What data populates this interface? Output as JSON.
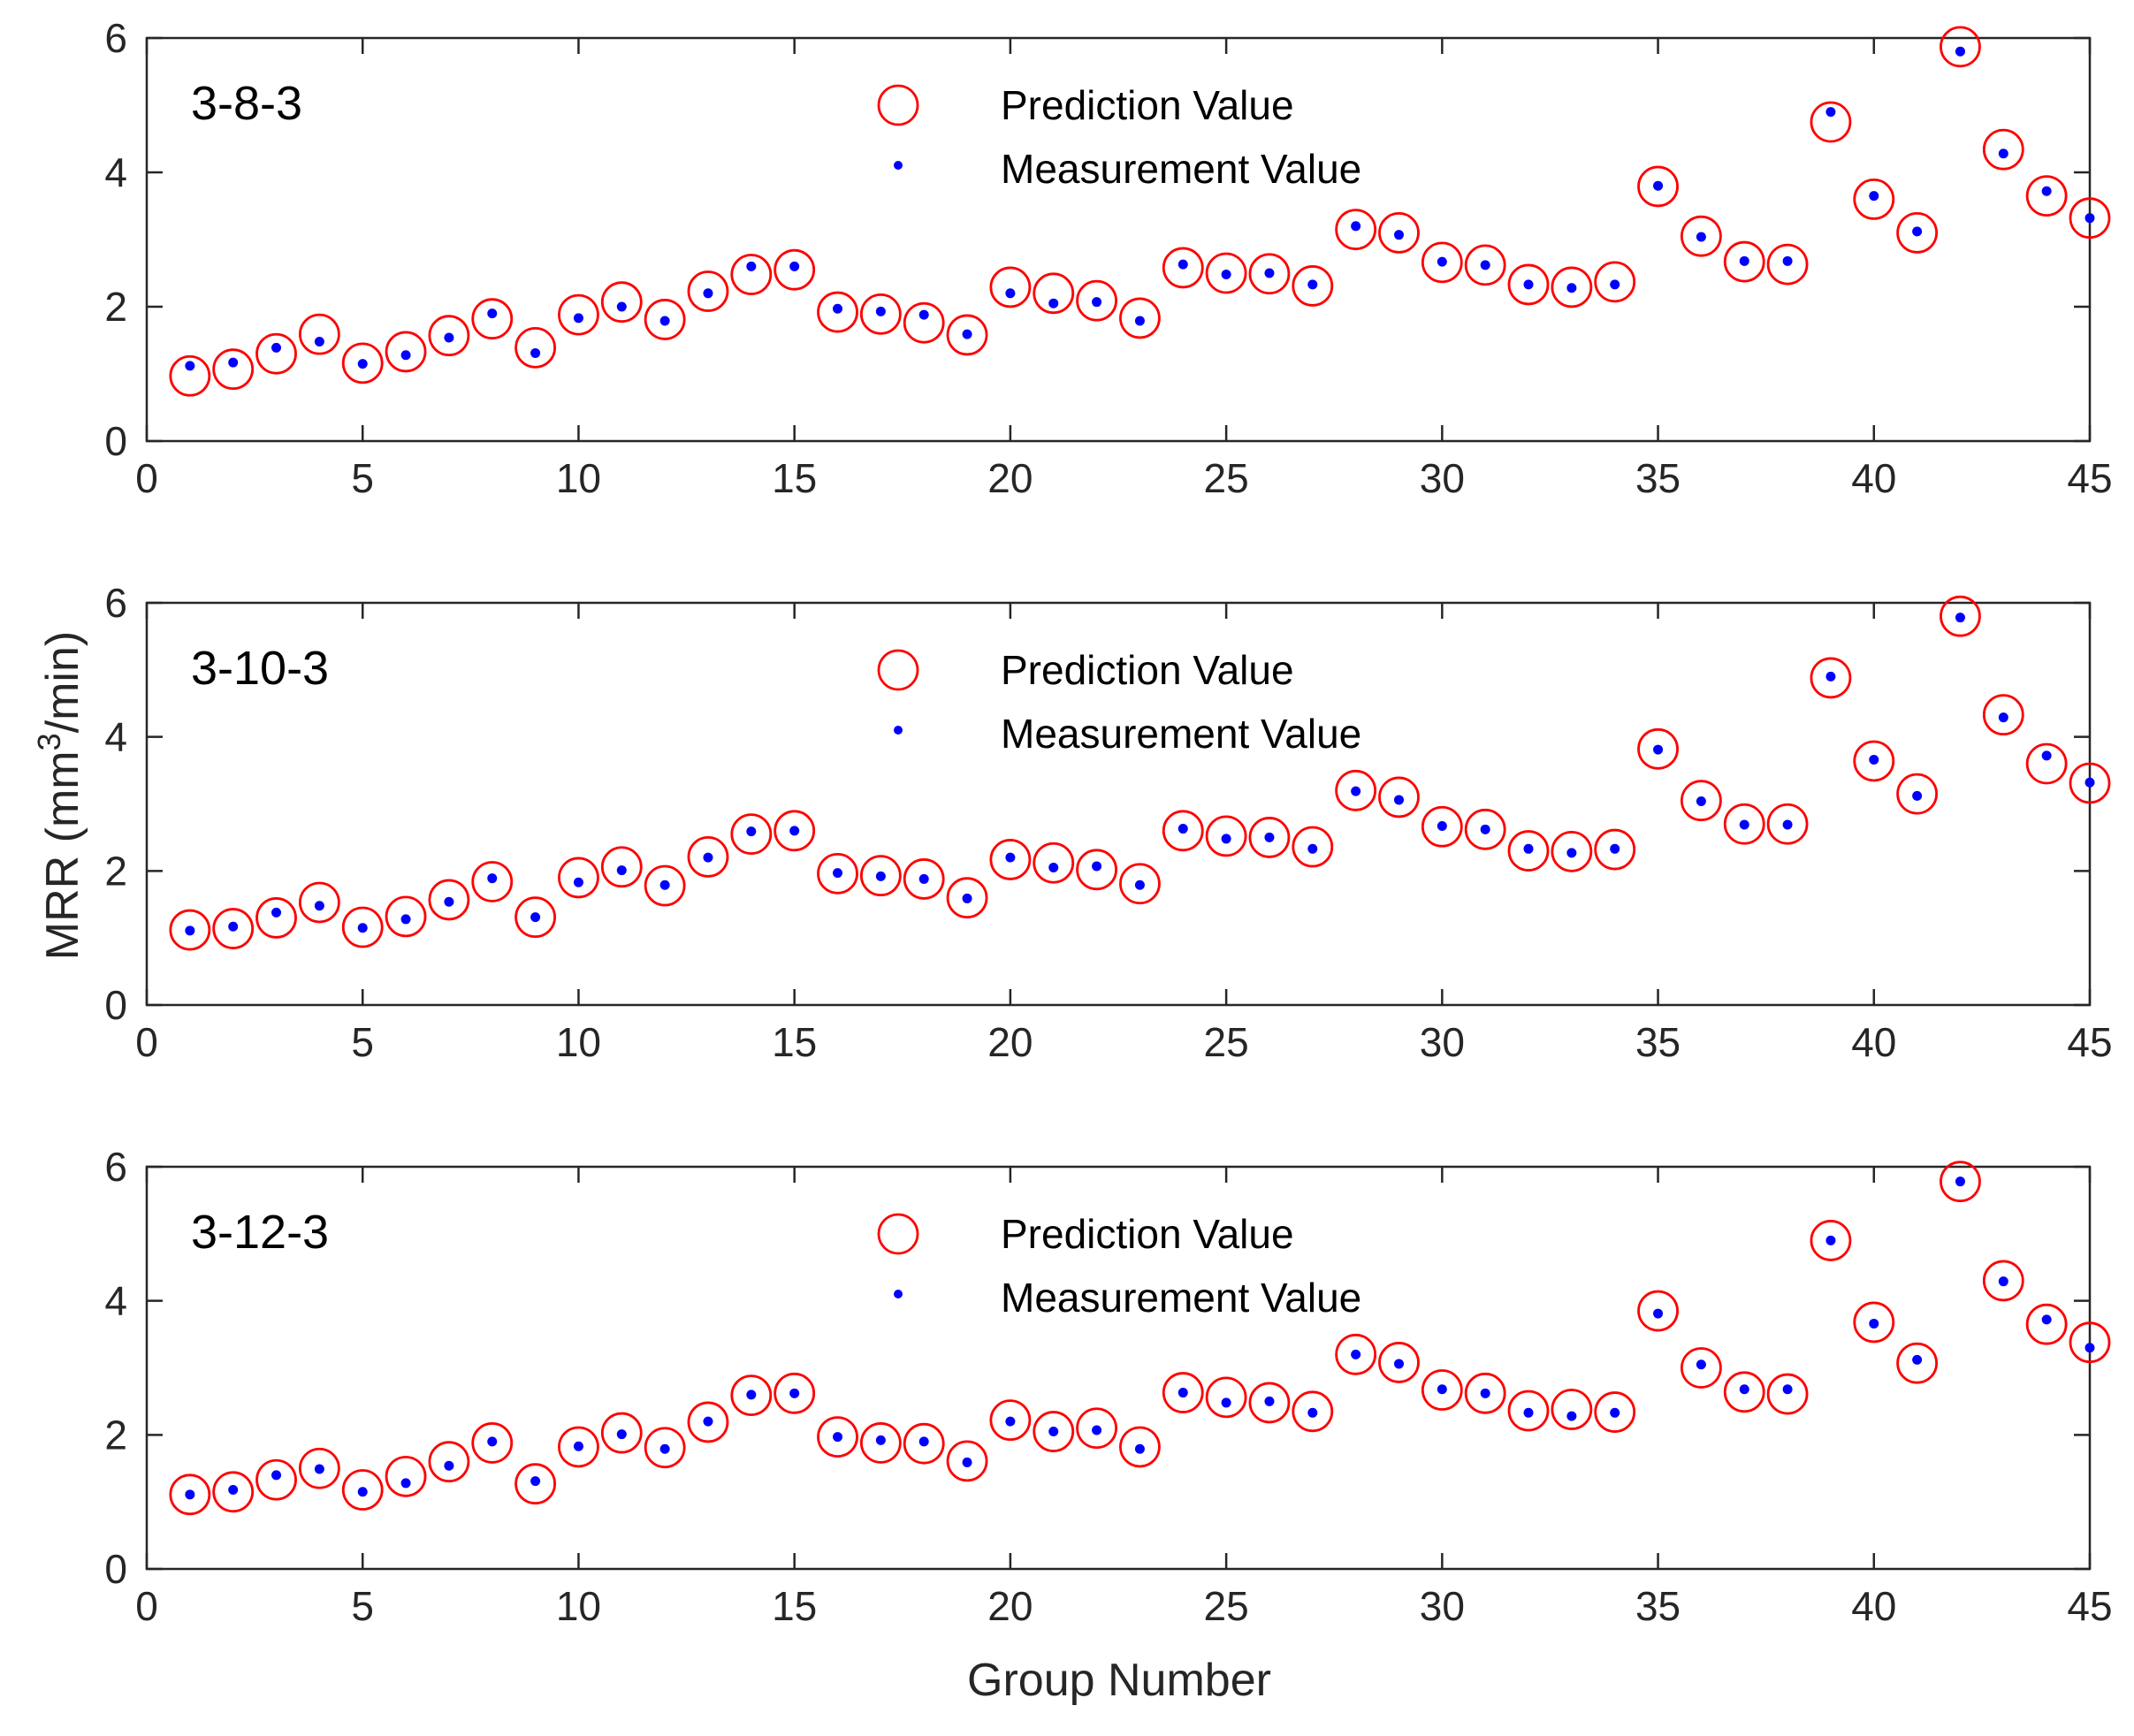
{
  "figure": {
    "ylabel": "MRR (mm",
    "ylabel_sup": "3",
    "ylabel_tail": "/min)",
    "xlabel": "Group Number"
  },
  "legend": {
    "prediction": "Prediction Value",
    "measurement": "Measurement Value"
  },
  "colors": {
    "prediction": "#ff0000",
    "measurement": "#0000ff",
    "axis": "#262626"
  },
  "chart_data": [
    {
      "type": "scatter",
      "title": "3-8-3",
      "xlabel": "",
      "ylabel": "MRR (mm3/min)",
      "xlim": [
        0,
        45
      ],
      "ylim": [
        0,
        6
      ],
      "xticks": [
        0,
        5,
        10,
        15,
        20,
        25,
        30,
        35,
        40,
        45
      ],
      "yticks": [
        0,
        2,
        4,
        6
      ],
      "legend_position": "top-center",
      "x": [
        1,
        2,
        3,
        4,
        5,
        6,
        7,
        8,
        9,
        10,
        11,
        12,
        13,
        14,
        15,
        16,
        17,
        18,
        19,
        20,
        21,
        22,
        23,
        24,
        25,
        26,
        27,
        28,
        29,
        30,
        31,
        32,
        33,
        34,
        35,
        36,
        37,
        38,
        39,
        40,
        41,
        42,
        43,
        44,
        45
      ],
      "series": [
        {
          "name": "Prediction Value",
          "marker": "circle-open",
          "values": [
            0.97,
            1.07,
            1.3,
            1.59,
            1.16,
            1.33,
            1.57,
            1.82,
            1.39,
            1.88,
            2.07,
            1.81,
            2.23,
            2.48,
            2.55,
            1.92,
            1.89,
            1.76,
            1.58,
            2.29,
            2.2,
            2.09,
            1.83,
            2.58,
            2.5,
            2.49,
            2.31,
            3.15,
            3.1,
            2.66,
            2.62,
            2.33,
            2.29,
            2.37,
            3.79,
            3.05,
            2.67,
            2.63,
            4.75,
            3.6,
            3.1,
            5.87,
            4.34,
            3.65,
            3.32
          ]
        },
        {
          "name": "Measurement Value",
          "marker": "dot",
          "values": [
            1.12,
            1.17,
            1.39,
            1.48,
            1.15,
            1.28,
            1.54,
            1.9,
            1.31,
            1.83,
            2.0,
            1.79,
            2.2,
            2.6,
            2.6,
            1.97,
            1.93,
            1.88,
            1.59,
            2.2,
            2.05,
            2.07,
            1.79,
            2.63,
            2.48,
            2.5,
            2.33,
            3.2,
            3.07,
            2.67,
            2.62,
            2.33,
            2.28,
            2.33,
            3.8,
            3.04,
            2.68,
            2.68,
            4.9,
            3.65,
            3.12,
            5.8,
            4.28,
            3.72,
            3.32
          ]
        }
      ]
    },
    {
      "type": "scatter",
      "title": "3-10-3",
      "xlabel": "",
      "ylabel": "MRR (mm3/min)",
      "xlim": [
        0,
        45
      ],
      "ylim": [
        0,
        6
      ],
      "xticks": [
        0,
        5,
        10,
        15,
        20,
        25,
        30,
        35,
        40,
        45
      ],
      "yticks": [
        0,
        2,
        4,
        6
      ],
      "legend_position": "top-center",
      "x": [
        1,
        2,
        3,
        4,
        5,
        6,
        7,
        8,
        9,
        10,
        11,
        12,
        13,
        14,
        15,
        16,
        17,
        18,
        19,
        20,
        21,
        22,
        23,
        24,
        25,
        26,
        27,
        28,
        29,
        30,
        31,
        32,
        33,
        34,
        35,
        36,
        37,
        38,
        39,
        40,
        41,
        42,
        43,
        44,
        45
      ],
      "series": [
        {
          "name": "Prediction Value",
          "marker": "circle-open",
          "values": [
            1.12,
            1.14,
            1.3,
            1.53,
            1.16,
            1.32,
            1.57,
            1.84,
            1.31,
            1.9,
            2.06,
            1.78,
            2.21,
            2.55,
            2.6,
            1.96,
            1.93,
            1.88,
            1.6,
            2.17,
            2.12,
            2.02,
            1.81,
            2.6,
            2.52,
            2.5,
            2.36,
            3.2,
            3.1,
            2.66,
            2.62,
            2.3,
            2.29,
            2.32,
            3.82,
            3.05,
            2.7,
            2.7,
            4.88,
            3.64,
            3.15,
            5.8,
            4.33,
            3.6,
            3.31
          ]
        },
        {
          "name": "Measurement Value",
          "marker": "dot",
          "values": [
            1.11,
            1.17,
            1.38,
            1.48,
            1.15,
            1.28,
            1.54,
            1.89,
            1.31,
            1.83,
            2.01,
            1.79,
            2.2,
            2.59,
            2.6,
            1.97,
            1.92,
            1.88,
            1.59,
            2.2,
            2.05,
            2.07,
            1.79,
            2.63,
            2.48,
            2.5,
            2.33,
            3.19,
            3.06,
            2.67,
            2.62,
            2.33,
            2.27,
            2.33,
            3.81,
            3.04,
            2.69,
            2.69,
            4.9,
            3.66,
            3.12,
            5.78,
            4.29,
            3.72,
            3.32
          ]
        }
      ]
    },
    {
      "type": "scatter",
      "title": "3-12-3",
      "xlabel": "Group Number",
      "ylabel": "MRR (mm3/min)",
      "xlim": [
        0,
        45
      ],
      "ylim": [
        0,
        6
      ],
      "xticks": [
        0,
        5,
        10,
        15,
        20,
        25,
        30,
        35,
        40,
        45
      ],
      "yticks": [
        0,
        2,
        4,
        6
      ],
      "legend_position": "top-center",
      "x": [
        1,
        2,
        3,
        4,
        5,
        6,
        7,
        8,
        9,
        10,
        11,
        12,
        13,
        14,
        15,
        16,
        17,
        18,
        19,
        20,
        21,
        22,
        23,
        24,
        25,
        26,
        27,
        28,
        29,
        30,
        31,
        32,
        33,
        34,
        35,
        36,
        37,
        38,
        39,
        40,
        41,
        42,
        43,
        44,
        45
      ],
      "series": [
        {
          "name": "Prediction Value",
          "marker": "circle-open",
          "values": [
            1.11,
            1.15,
            1.33,
            1.5,
            1.18,
            1.38,
            1.6,
            1.88,
            1.27,
            1.82,
            2.03,
            1.81,
            2.19,
            2.59,
            2.62,
            1.97,
            1.88,
            1.87,
            1.61,
            2.22,
            2.05,
            2.1,
            1.82,
            2.63,
            2.56,
            2.48,
            2.35,
            3.2,
            3.08,
            2.67,
            2.62,
            2.36,
            2.38,
            2.34,
            3.85,
            3.0,
            2.64,
            2.61,
            4.9,
            3.68,
            3.07,
            5.78,
            4.3,
            3.65,
            3.38
          ]
        },
        {
          "name": "Measurement Value",
          "marker": "dot",
          "values": [
            1.11,
            1.18,
            1.4,
            1.49,
            1.15,
            1.28,
            1.54,
            1.9,
            1.31,
            1.83,
            2.01,
            1.79,
            2.2,
            2.6,
            2.62,
            1.97,
            1.92,
            1.9,
            1.59,
            2.2,
            2.05,
            2.07,
            1.79,
            2.63,
            2.48,
            2.5,
            2.33,
            3.2,
            3.06,
            2.68,
            2.62,
            2.33,
            2.28,
            2.33,
            3.81,
            3.05,
            2.68,
            2.68,
            4.9,
            3.66,
            3.12,
            5.78,
            4.29,
            3.72,
            3.3
          ]
        }
      ]
    }
  ]
}
